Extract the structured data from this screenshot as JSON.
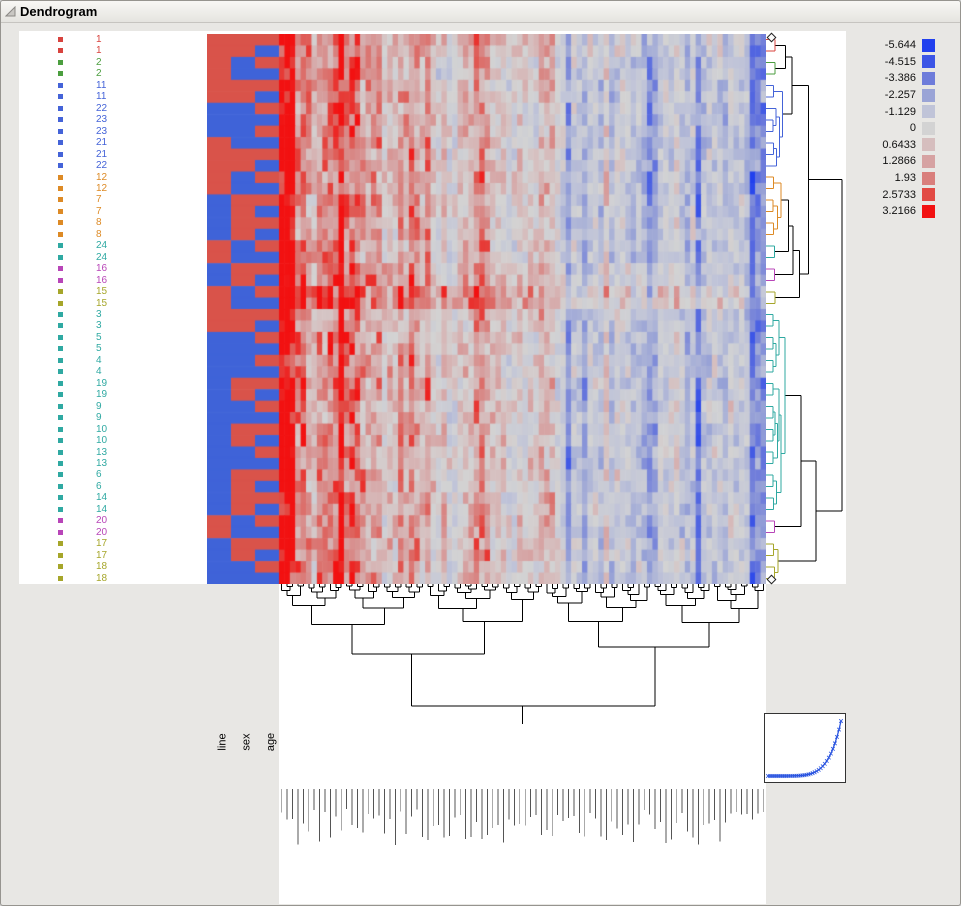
{
  "window": {
    "title": "Dendrogram"
  },
  "colors": {
    "cluster": {
      "red": "#d8433e",
      "green": "#4b9e3f",
      "blue": "#4463d8",
      "orange": "#dd8a25",
      "teal": "#2fa9a2",
      "magenta": "#b845b8",
      "olive": "#a6a62a",
      "black": "#000000"
    },
    "categorical": {
      "R": "#d9534a",
      "B": "#3f63d8"
    }
  },
  "rows": [
    {
      "label": "1",
      "cluster": "red"
    },
    {
      "label": "1",
      "cluster": "red"
    },
    {
      "label": "2",
      "cluster": "green"
    },
    {
      "label": "2",
      "cluster": "green"
    },
    {
      "label": "11",
      "cluster": "blue"
    },
    {
      "label": "11",
      "cluster": "blue"
    },
    {
      "label": "22",
      "cluster": "blue"
    },
    {
      "label": "23",
      "cluster": "blue"
    },
    {
      "label": "23",
      "cluster": "blue"
    },
    {
      "label": "21",
      "cluster": "blue"
    },
    {
      "label": "21",
      "cluster": "blue"
    },
    {
      "label": "22",
      "cluster": "blue"
    },
    {
      "label": "12",
      "cluster": "orange"
    },
    {
      "label": "12",
      "cluster": "orange"
    },
    {
      "label": "7",
      "cluster": "orange"
    },
    {
      "label": "7",
      "cluster": "orange"
    },
    {
      "label": "8",
      "cluster": "orange"
    },
    {
      "label": "8",
      "cluster": "orange"
    },
    {
      "label": "24",
      "cluster": "teal"
    },
    {
      "label": "24",
      "cluster": "teal"
    },
    {
      "label": "16",
      "cluster": "magenta"
    },
    {
      "label": "16",
      "cluster": "magenta"
    },
    {
      "label": "15",
      "cluster": "olive"
    },
    {
      "label": "15",
      "cluster": "olive"
    },
    {
      "label": "3",
      "cluster": "teal"
    },
    {
      "label": "3",
      "cluster": "teal"
    },
    {
      "label": "5",
      "cluster": "teal"
    },
    {
      "label": "5",
      "cluster": "teal"
    },
    {
      "label": "4",
      "cluster": "teal"
    },
    {
      "label": "4",
      "cluster": "teal"
    },
    {
      "label": "19",
      "cluster": "teal"
    },
    {
      "label": "19",
      "cluster": "teal"
    },
    {
      "label": "9",
      "cluster": "teal"
    },
    {
      "label": "9",
      "cluster": "teal"
    },
    {
      "label": "10",
      "cluster": "teal"
    },
    {
      "label": "10",
      "cluster": "teal"
    },
    {
      "label": "13",
      "cluster": "teal"
    },
    {
      "label": "13",
      "cluster": "teal"
    },
    {
      "label": "6",
      "cluster": "teal"
    },
    {
      "label": "6",
      "cluster": "teal"
    },
    {
      "label": "14",
      "cluster": "teal"
    },
    {
      "label": "14",
      "cluster": "teal"
    },
    {
      "label": "20",
      "cluster": "magenta"
    },
    {
      "label": "20",
      "cluster": "magenta"
    },
    {
      "label": "17",
      "cluster": "olive"
    },
    {
      "label": "17",
      "cluster": "olive"
    },
    {
      "label": "18",
      "cluster": "olive"
    },
    {
      "label": "18",
      "cluster": "olive"
    }
  ],
  "categorical_columns": {
    "labels": [
      "line",
      "sex",
      "age"
    ],
    "line": "RRRRRRBBBRRRRRBBBBRRBBRRRRBBBBBBBBBBBBBBBBRRBBBB",
    "sex": "RRBBRRBBBBRRBBRRRRBBRRBBRRBBBBRRBBRRBBRRRRBBRRBB",
    "age": "RBRBRBRBRBRBRBRBRBRBRBRBRBRBRBRBRBRBRBRBRBRBRBRB"
  },
  "legend": {
    "entries": [
      {
        "label": "-5.644",
        "color": "#2140ee"
      },
      {
        "label": "-4.515",
        "color": "#3c55e6"
      },
      {
        "label": "-3.386",
        "color": "#6e7cda"
      },
      {
        "label": "-2.257",
        "color": "#9aa4d6"
      },
      {
        "label": "-1.129",
        "color": "#c0c4d8"
      },
      {
        "label": "0",
        "color": "#d3d3d3"
      },
      {
        "label": "0.6433",
        "color": "#d6bebe"
      },
      {
        "label": "1.2866",
        "color": "#d6a2a2"
      },
      {
        "label": "1.93",
        "color": "#d97f7c"
      },
      {
        "label": "2.5733",
        "color": "#e24a44"
      },
      {
        "label": "3.2166",
        "color": "#f21111"
      }
    ]
  },
  "heatmap": {
    "rows": 48,
    "cols": 90,
    "seed": 101
  },
  "column_dendrogram": {
    "seed": 7,
    "leaves": 90
  },
  "scree_plot": {
    "curve_color": "#2b55e0"
  },
  "right_dendrogram": {
    "d": 0.97,
    "c": "black",
    "ch": [
      {
        "d": 0.52,
        "c": "black",
        "ch": [
          {
            "d": 0.3,
            "c": "black",
            "ch": [
              {
                "d": 0.21,
                "c": "black",
                "ch": [
                  {
                    "d": 0.07,
                    "c": "red",
                    "ch": [
                      {
                        "f": 0
                      },
                      {
                        "f": 1
                      }
                    ]
                  },
                  {
                    "d": 0.07,
                    "c": "green",
                    "ch": [
                      {
                        "f": 2
                      },
                      {
                        "f": 3
                      }
                    ]
                  }
                ]
              },
              {
                "d": 0.17,
                "c": "blue",
                "ch": [
                  {
                    "d": 0.05,
                    "c": "blue",
                    "ch": [
                      {
                        "f": 4
                      },
                      {
                        "f": 5
                      }
                    ]
                  },
                  {
                    "d": 0.13,
                    "c": "blue",
                    "ch": [
                      {
                        "d": 0.08,
                        "c": "blue",
                        "ch": [
                          {
                            "f": 6
                          },
                          {
                            "d": 0.04,
                            "c": "blue",
                            "ch": [
                              {
                                "f": 7
                              },
                              {
                                "f": 8
                              }
                            ]
                          }
                        ]
                      },
                      {
                        "d": 0.09,
                        "c": "blue",
                        "ch": [
                          {
                            "d": 0.05,
                            "c": "blue",
                            "ch": [
                              {
                                "f": 9
                              },
                              {
                                "f": 10
                              }
                            ]
                          },
                          {
                            "f": 11
                          }
                        ]
                      }
                    ]
                  }
                ]
              }
            ]
          },
          {
            "d": 0.4,
            "c": "black",
            "ch": [
              {
                "d": 0.31,
                "c": "black",
                "ch": [
                  {
                    "d": 0.25,
                    "c": "black",
                    "ch": [
                      {
                        "d": 0.15,
                        "c": "orange",
                        "ch": [
                          {
                            "d": 0.05,
                            "c": "orange",
                            "ch": [
                              {
                                "f": 12
                              },
                              {
                                "f": 13
                              }
                            ]
                          },
                          {
                            "d": 0.1,
                            "c": "orange",
                            "ch": [
                              {
                                "d": 0.04,
                                "c": "orange",
                                "ch": [
                                  {
                                    "f": 14
                                  },
                                  {
                                    "f": 15
                                  }
                                ]
                              },
                              {
                                "d": 0.05,
                                "c": "orange",
                                "ch": [
                                  {
                                    "f": 16
                                  },
                                  {
                                    "f": 17
                                  }
                                ]
                              }
                            ]
                          }
                        ]
                      },
                      {
                        "d": 0.06,
                        "c": "teal",
                        "ch": [
                          {
                            "f": 18
                          },
                          {
                            "f": 19
                          }
                        ]
                      }
                    ]
                  },
                  {
                    "d": 0.06,
                    "c": "magenta",
                    "ch": [
                      {
                        "f": 20
                      },
                      {
                        "f": 21
                      }
                    ]
                  }
                ]
              },
              {
                "d": 0.07,
                "c": "olive",
                "ch": [
                  {
                    "f": 22
                  },
                  {
                    "f": 23
                  }
                ]
              }
            ]
          }
        ]
      },
      {
        "d": 0.62,
        "c": "black",
        "ch": [
          {
            "d": 0.42,
            "c": "black",
            "ch": [
              {
                "d": 0.2,
                "c": "teal",
                "ch": [
                  {
                    "d": 0.12,
                    "c": "teal",
                    "ch": [
                      {
                        "d": 0.04,
                        "c": "teal",
                        "ch": [
                          {
                            "f": 24
                          },
                          {
                            "f": 25
                          }
                        ]
                      },
                      {
                        "d": 0.08,
                        "c": "teal",
                        "ch": [
                          {
                            "d": 0.04,
                            "c": "teal",
                            "ch": [
                              {
                                "f": 26
                              },
                              {
                                "f": 27
                              }
                            ]
                          },
                          {
                            "d": 0.04,
                            "c": "teal",
                            "ch": [
                              {
                                "f": 28
                              },
                              {
                                "f": 29
                              }
                            ]
                          }
                        ]
                      }
                    ]
                  },
                  {
                    "d": 0.15,
                    "c": "teal",
                    "ch": [
                      {
                        "d": 0.12,
                        "c": "teal",
                        "ch": [
                          {
                            "d": 0.04,
                            "c": "teal",
                            "ch": [
                              {
                                "f": 30
                              },
                              {
                                "f": 31
                              }
                            ]
                          },
                          {
                            "d": 0.1,
                            "c": "teal",
                            "ch": [
                              {
                                "d": 0.07,
                                "c": "teal",
                                "ch": [
                                  {
                                    "d": 0.04,
                                    "c": "teal",
                                    "ch": [
                                      {
                                        "f": 32
                                      },
                                      {
                                        "f": 33
                                      }
                                    ]
                                  },
                                  {
                                    "d": 0.04,
                                    "c": "teal",
                                    "ch": [
                                      {
                                        "f": 34
                                      },
                                      {
                                        "f": 35
                                      }
                                    ]
                                  }
                                ]
                              },
                              {
                                "d": 0.04,
                                "c": "teal",
                                "ch": [
                                  {
                                    "f": 36
                                  },
                                  {
                                    "f": 37
                                  }
                                ]
                              }
                            ]
                          }
                        ]
                      },
                      {
                        "d": 0.09,
                        "c": "teal",
                        "ch": [
                          {
                            "d": 0.04,
                            "c": "teal",
                            "ch": [
                              {
                                "f": 38
                              },
                              {
                                "f": 39
                              }
                            ]
                          },
                          {
                            "d": 0.05,
                            "c": "teal",
                            "ch": [
                              {
                                "f": 40
                              },
                              {
                                "f": 41
                              }
                            ]
                          }
                        ]
                      }
                    ]
                  }
                ]
              },
              {
                "d": 0.06,
                "c": "magenta",
                "ch": [
                  {
                    "f": 42
                  },
                  {
                    "f": 43
                  }
                ]
              }
            ]
          },
          {
            "d": 0.11,
            "c": "olive",
            "ch": [
              {
                "d": 0.05,
                "c": "olive",
                "ch": [
                  {
                    "f": 44
                  },
                  {
                    "f": 45
                  }
                ]
              },
              {
                "d": 0.06,
                "c": "olive",
                "ch": [
                  {
                    "f": 46
                  },
                  {
                    "f": 47
                  }
                ]
              }
            ]
          }
        ]
      }
    ]
  }
}
